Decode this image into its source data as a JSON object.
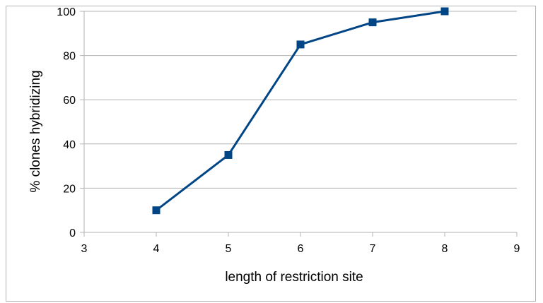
{
  "chart_data": {
    "type": "line",
    "title": "",
    "xlabel": "length of restriction site",
    "ylabel": "% clones hybridizing",
    "xlim": [
      3,
      9
    ],
    "ylim": [
      0,
      100
    ],
    "x_ticks": [
      "3",
      "4",
      "5",
      "6",
      "7",
      "8",
      "9"
    ],
    "y_ticks": [
      "0",
      "20",
      "40",
      "60",
      "80",
      "100"
    ],
    "grid": "horizontal",
    "legend": "none",
    "series": [
      {
        "color": "#004586",
        "marker": "square",
        "points": [
          {
            "x": 4,
            "y": 10
          },
          {
            "x": 5,
            "y": 35
          },
          {
            "x": 6,
            "y": 85
          },
          {
            "x": 7,
            "y": 95
          },
          {
            "x": 8,
            "y": 100
          }
        ]
      }
    ]
  }
}
